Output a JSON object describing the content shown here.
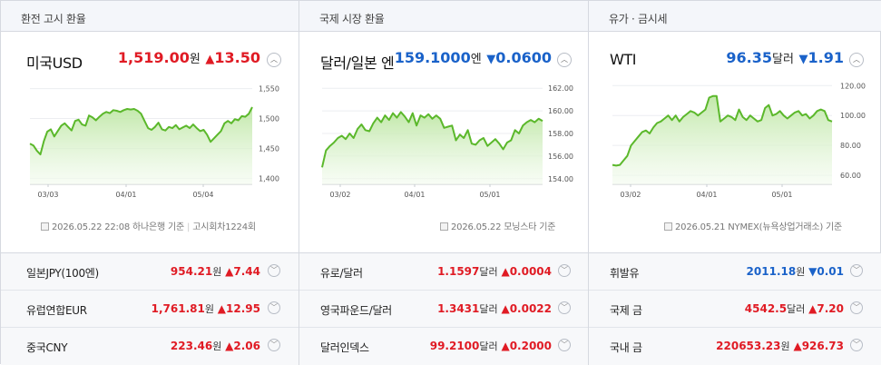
{
  "sections": [
    {
      "tab": "환전 고시 환율",
      "name": "미국USD",
      "price": "1,519.00",
      "unit": "원",
      "direction": "up",
      "change_sign": "▲",
      "change": "13.50",
      "source_date": "2026.05.22 22:08",
      "source_name": "하나은행 기준",
      "source_extra": "고시회차1224회",
      "chart_data": {
        "type": "area",
        "x_labels": [
          "03/03",
          "04/01",
          "05/04"
        ],
        "y_ticks": [
          "1,550",
          "1,500",
          "1,450",
          "1,400"
        ],
        "ylim": [
          1390,
          1560
        ],
        "values": [
          1458,
          1455,
          1446,
          1440,
          1462,
          1478,
          1482,
          1470,
          1479,
          1488,
          1492,
          1486,
          1480,
          1496,
          1498,
          1490,
          1488,
          1505,
          1502,
          1497,
          1503,
          1508,
          1511,
          1509,
          1514,
          1513,
          1511,
          1514,
          1516,
          1515,
          1516,
          1513,
          1508,
          1496,
          1484,
          1481,
          1486,
          1493,
          1482,
          1480,
          1486,
          1484,
          1489,
          1482,
          1485,
          1488,
          1484,
          1490,
          1484,
          1479,
          1481,
          1473,
          1461,
          1467,
          1473,
          1479,
          1492,
          1496,
          1492,
          1499,
          1497,
          1504,
          1503,
          1508,
          1519
        ],
        "color": "#5bb82b"
      },
      "rows": [
        {
          "name": "일본JPY(100엔)",
          "value": "954.21",
          "unit": "원",
          "sign": "▲",
          "change": "7.44",
          "direction": "up"
        },
        {
          "name": "유럽연합EUR",
          "value": "1,761.81",
          "unit": "원",
          "sign": "▲",
          "change": "12.95",
          "direction": "up"
        },
        {
          "name": "중국CNY",
          "value": "223.46",
          "unit": "원",
          "sign": "▲",
          "change": "2.06",
          "direction": "up"
        }
      ]
    },
    {
      "tab": "국제 시장 환율",
      "name": "달러/일본 엔",
      "price": "159.1000",
      "unit": "엔",
      "direction": "down",
      "change_sign": "▼",
      "change": "0.0600",
      "source_date": "2026.05.22",
      "source_name": "모닝스타 기준",
      "source_extra": "",
      "chart_data": {
        "type": "area",
        "x_labels": [
          "03/02",
          "04/01",
          "05/01"
        ],
        "y_ticks": [
          "162.00",
          "160.00",
          "158.00",
          "156.00",
          "154.00"
        ],
        "ylim": [
          153.5,
          162.5
        ],
        "values": [
          155.0,
          156.5,
          156.9,
          157.2,
          157.6,
          157.8,
          157.5,
          158.0,
          157.6,
          158.4,
          158.8,
          158.3,
          158.2,
          158.9,
          159.4,
          159.0,
          159.6,
          159.2,
          159.8,
          159.4,
          159.9,
          159.5,
          159.0,
          159.8,
          158.7,
          159.6,
          159.4,
          159.7,
          159.3,
          159.6,
          159.3,
          158.5,
          158.6,
          158.7,
          157.4,
          157.9,
          157.6,
          158.3,
          157.1,
          157.0,
          157.4,
          157.6,
          156.9,
          157.2,
          157.5,
          157.1,
          156.6,
          157.2,
          157.4,
          158.3,
          158.0,
          158.7,
          159.0,
          159.2,
          159.0,
          159.3,
          159.1
        ],
        "color": "#5bb82b"
      },
      "rows": [
        {
          "name": "유로/달러",
          "value": "1.1597",
          "unit": "달러",
          "sign": "▲",
          "change": "0.0004",
          "direction": "up"
        },
        {
          "name": "영국파운드/달러",
          "value": "1.3431",
          "unit": "달러",
          "sign": "▲",
          "change": "0.0022",
          "direction": "up"
        },
        {
          "name": "달러인덱스",
          "value": "99.2100",
          "unit": "달러",
          "sign": "▲",
          "change": "0.2000",
          "direction": "up"
        }
      ]
    },
    {
      "tab": "유가 · 금시세",
      "name": "WTI",
      "price": "96.35",
      "unit": "달러",
      "direction": "down",
      "change_sign": "▼",
      "change": "1.91",
      "source_date": "2026.05.21",
      "source_name": "NYMEX(뉴욕상업거래소) 기준",
      "source_extra": "",
      "chart_data": {
        "type": "area",
        "x_labels": [
          "03/02",
          "04/01",
          "05/01"
        ],
        "y_ticks": [
          "120.00",
          "100.00",
          "80.00",
          "60.00"
        ],
        "ylim": [
          54,
          122
        ],
        "values": [
          67,
          66.5,
          67,
          70,
          73,
          80,
          83,
          86,
          89,
          90,
          88,
          92,
          95,
          96,
          98,
          100,
          97,
          100,
          96,
          99,
          101,
          103,
          102,
          100,
          102,
          104,
          112,
          113,
          113,
          96,
          98,
          100,
          99,
          97,
          104,
          99,
          97,
          100,
          98,
          96,
          97,
          105,
          107,
          100,
          101,
          103,
          100,
          98,
          100,
          102,
          103,
          100,
          101,
          98,
          100,
          103,
          104,
          103,
          97,
          96
        ]
      },
      "rows": [
        {
          "name": "휘발유",
          "value": "2011.18",
          "unit": "원",
          "sign": "▼",
          "change": "0.01",
          "direction": "down"
        },
        {
          "name": "국제 금",
          "value": "4542.5",
          "unit": "달러",
          "sign": "▲",
          "change": "7.20",
          "direction": "up"
        },
        {
          "name": "국내 금",
          "value": "220653.23",
          "unit": "원",
          "sign": "▲",
          "change": "926.73",
          "direction": "up"
        }
      ]
    }
  ],
  "icons": {
    "toggle": "chevron-up-icon",
    "row_toggle": "chevron-down-icon",
    "source": "document-icon"
  },
  "colors": {
    "up": "#e01b24",
    "down": "#1a62c9",
    "line": "#5bb82b"
  }
}
